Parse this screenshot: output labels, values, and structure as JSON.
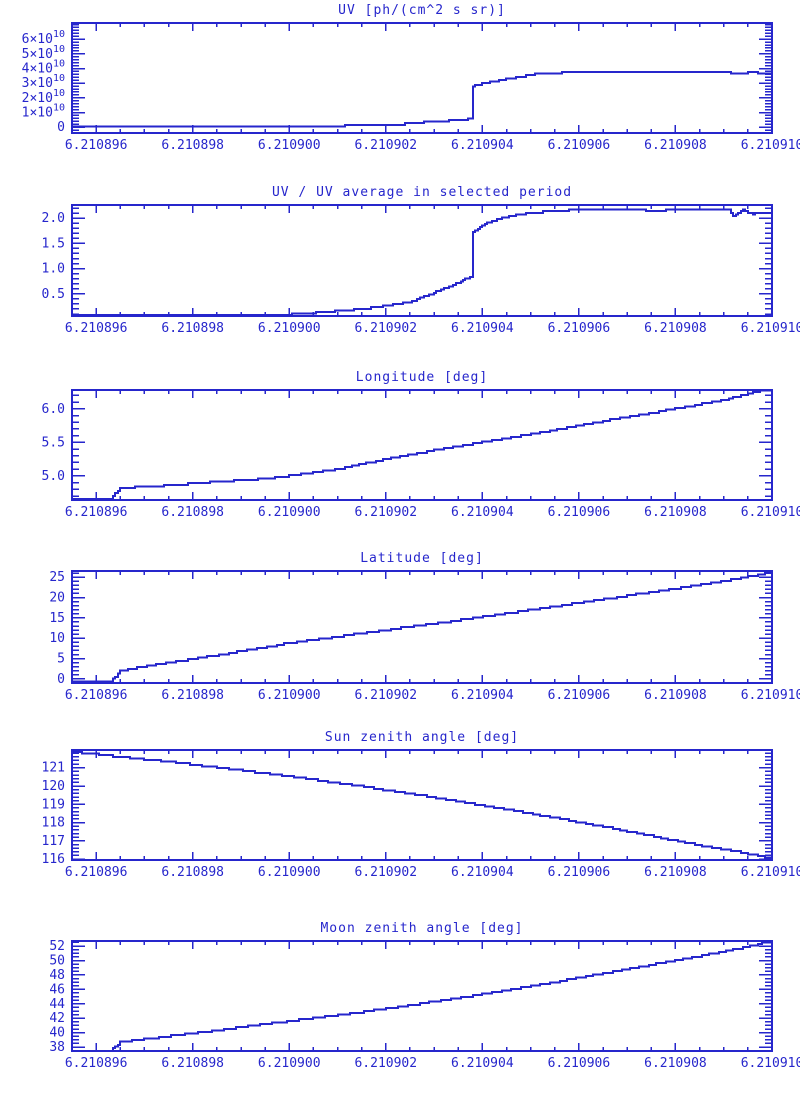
{
  "page": {
    "background": "#ffffff",
    "accent": "#2626cc"
  },
  "chart_data": {
    "type": "line",
    "grid": false,
    "legend": null,
    "x_axis": {
      "lim": [
        6.2108955,
        6.21091
      ],
      "tick_values": [
        6.210896,
        6.210898,
        6.2109,
        6.210902,
        6.210904,
        6.210906,
        6.210908,
        6.21091
      ],
      "tick_labels": [
        "6.210896",
        "6.210898",
        "6.210900",
        "6.210902",
        "6.210904",
        "6.210906",
        "6.210908",
        "6.210910"
      ],
      "minor_step": 5e-07
    },
    "panels": [
      {
        "id": "uv",
        "title": "UV [ph/(cm^2 s sr)]",
        "ylim": [
          -4000000000.0,
          71000000000.0
        ],
        "ytick_values": [
          0,
          10000000000.0,
          20000000000.0,
          30000000000.0,
          40000000000.0,
          50000000000.0,
          60000000000.0
        ],
        "ytick_labels": [
          "0",
          "1×10^10",
          "2×10^10",
          "3×10^10",
          "4×10^10",
          "5×10^10",
          "6×10^10"
        ],
        "yminor_step": 2000000000.0,
        "points": [
          [
            6.2108955,
            300000000.0
          ],
          [
            6.2109005,
            300000000.0
          ],
          [
            6.2109008,
            800000000.0
          ],
          [
            6.2109015,
            1300000000.0
          ],
          [
            6.2109023,
            1800000000.0
          ],
          [
            6.2109025,
            2800000000.0
          ],
          [
            6.2109031,
            3800000000.0
          ],
          [
            6.2109035,
            5000000000.0
          ],
          [
            6.2109037,
            5500000000.0
          ],
          [
            6.2109038,
            6200000000.0
          ],
          [
            6.2109038,
            28000000000.0
          ],
          [
            6.210904,
            29500000000.0
          ],
          [
            6.2109042,
            31000000000.0
          ],
          [
            6.2109044,
            32000000000.0
          ],
          [
            6.2109046,
            33500000000.0
          ],
          [
            6.2109049,
            35000000000.0
          ],
          [
            6.2109051,
            36000000000.0
          ],
          [
            6.2109054,
            36800000000.0
          ],
          [
            6.2109058,
            37200000000.0
          ],
          [
            6.2109065,
            37300000000.0
          ],
          [
            6.2109075,
            37200000000.0
          ],
          [
            6.2109085,
            37200000000.0
          ],
          [
            6.2109091,
            37200000000.0
          ],
          [
            6.2109092,
            36000000000.0
          ],
          [
            6.2109095,
            36000000000.0
          ],
          [
            6.2109095,
            37600000000.0
          ],
          [
            6.2109096,
            37600000000.0
          ],
          [
            6.2109097,
            36600000000.0
          ],
          [
            6.21091,
            36800000000.0
          ]
        ]
      },
      {
        "id": "uv-ratio",
        "title": "UV / UV average in selected period",
        "ylim": [
          0.06,
          2.26
        ],
        "ytick_values": [
          0.5,
          1.0,
          1.5,
          2.0
        ],
        "ytick_labels": [
          "0.5",
          "1.0",
          "1.5",
          "2.0"
        ],
        "yminor_step": 0.1,
        "points": [
          [
            6.2108955,
            0.07
          ],
          [
            6.2108995,
            0.07
          ],
          [
            6.2109,
            0.09
          ],
          [
            6.2109005,
            0.12
          ],
          [
            6.210901,
            0.16
          ],
          [
            6.2109015,
            0.2
          ],
          [
            6.210902,
            0.26
          ],
          [
            6.2109025,
            0.34
          ],
          [
            6.210903,
            0.52
          ],
          [
            6.2109034,
            0.68
          ],
          [
            6.2109036,
            0.77
          ],
          [
            6.2109038,
            0.85
          ],
          [
            6.2109038,
            1.72
          ],
          [
            6.2109041,
            1.9
          ],
          [
            6.2109044,
            2.0
          ],
          [
            6.2109048,
            2.08
          ],
          [
            6.2109053,
            2.13
          ],
          [
            6.2109059,
            2.16
          ],
          [
            6.2109065,
            2.17
          ],
          [
            6.2109075,
            2.15
          ],
          [
            6.2109085,
            2.16
          ],
          [
            6.2109091,
            2.16
          ],
          [
            6.2109092,
            2.03
          ],
          [
            6.2109094,
            2.16
          ],
          [
            6.2109096,
            2.08
          ],
          [
            6.2109098,
            2.12
          ],
          [
            6.21091,
            2.12
          ]
        ]
      },
      {
        "id": "longitude",
        "title": "Longitude [deg]",
        "ylim": [
          4.64,
          6.28
        ],
        "ytick_values": [
          5.0,
          5.5,
          6.0
        ],
        "ytick_labels": [
          "5.0",
          "5.5",
          "6.0"
        ],
        "yminor_step": 0.1,
        "points": [
          [
            6.2108955,
            4.66
          ],
          [
            6.2108963,
            4.66
          ],
          [
            6.2108965,
            4.82
          ],
          [
            6.2108975,
            4.86
          ],
          [
            6.2108985,
            4.91
          ],
          [
            6.2108995,
            4.96
          ],
          [
            6.2109,
            5.0
          ],
          [
            6.210901,
            5.1
          ],
          [
            6.210902,
            5.25
          ],
          [
            6.210903,
            5.38
          ],
          [
            6.210904,
            5.5
          ],
          [
            6.210905,
            5.62
          ],
          [
            6.210906,
            5.75
          ],
          [
            6.210907,
            5.88
          ],
          [
            6.210908,
            6.0
          ],
          [
            6.210909,
            6.13
          ],
          [
            6.2109097,
            6.26
          ],
          [
            6.21091,
            6.28
          ]
        ]
      },
      {
        "id": "latitude",
        "title": "Latitude [deg]",
        "ylim": [
          -1.0,
          26.5
        ],
        "ytick_values": [
          0,
          5,
          10,
          15,
          20,
          25
        ],
        "ytick_labels": [
          "0",
          "5",
          "10",
          "15",
          "20",
          "25"
        ],
        "yminor_step": 1,
        "points": [
          [
            6.2108955,
            -0.7
          ],
          [
            6.2108963,
            -0.7
          ],
          [
            6.2108965,
            2.0
          ],
          [
            6.2108975,
            4.0
          ],
          [
            6.2108985,
            5.8
          ],
          [
            6.2109,
            8.8
          ],
          [
            6.2109015,
            11.2
          ],
          [
            6.2109035,
            14.4
          ],
          [
            6.2109055,
            17.8
          ],
          [
            6.2109075,
            21.3
          ],
          [
            6.210909,
            24.0
          ],
          [
            6.21091,
            26.2
          ]
        ]
      },
      {
        "id": "sun-zenith",
        "title": "Sun zenith angle [deg]",
        "ylim": [
          115.95,
          121.97
        ],
        "ytick_values": [
          116,
          117,
          118,
          119,
          120,
          121
        ],
        "ytick_labels": [
          "116",
          "117",
          "118",
          "119",
          "120",
          "121"
        ],
        "yminor_step": 0.2,
        "points": [
          [
            6.2108955,
            121.87
          ],
          [
            6.2108965,
            121.6
          ],
          [
            6.2108975,
            121.33
          ],
          [
            6.2108985,
            121.02
          ],
          [
            6.2108995,
            120.7
          ],
          [
            6.2109005,
            120.35
          ],
          [
            6.2109015,
            119.98
          ],
          [
            6.2109025,
            119.58
          ],
          [
            6.2109035,
            119.16
          ],
          [
            6.2109045,
            118.72
          ],
          [
            6.2109055,
            118.26
          ],
          [
            6.2109065,
            117.78
          ],
          [
            6.2109075,
            117.27
          ],
          [
            6.2109085,
            116.75
          ],
          [
            6.2109095,
            116.3
          ],
          [
            6.21091,
            116.05
          ]
        ]
      },
      {
        "id": "moon-zenith",
        "title": "Moon zenith angle [deg]",
        "ylim": [
          37.45,
          52.7
        ],
        "ytick_values": [
          38,
          40,
          42,
          44,
          46,
          48,
          50,
          52
        ],
        "ytick_labels": [
          "38",
          "40",
          "42",
          "44",
          "46",
          "48",
          "50",
          "52"
        ],
        "yminor_step": 0.5,
        "points": [
          [
            6.2108955,
            37.5
          ],
          [
            6.2108963,
            37.5
          ],
          [
            6.2108965,
            38.7
          ],
          [
            6.2108975,
            39.5
          ],
          [
            6.2108985,
            40.3
          ],
          [
            6.2108995,
            41.2
          ],
          [
            6.2109005,
            42.0
          ],
          [
            6.2109015,
            42.85
          ],
          [
            6.2109025,
            43.8
          ],
          [
            6.2109035,
            44.8
          ],
          [
            6.2109045,
            45.9
          ],
          [
            6.2109055,
            47.0
          ],
          [
            6.2109065,
            48.2
          ],
          [
            6.2109075,
            49.4
          ],
          [
            6.2109085,
            50.6
          ],
          [
            6.2109095,
            51.9
          ],
          [
            6.2109098,
            52.4
          ],
          [
            6.21091,
            52.55
          ]
        ]
      }
    ]
  }
}
